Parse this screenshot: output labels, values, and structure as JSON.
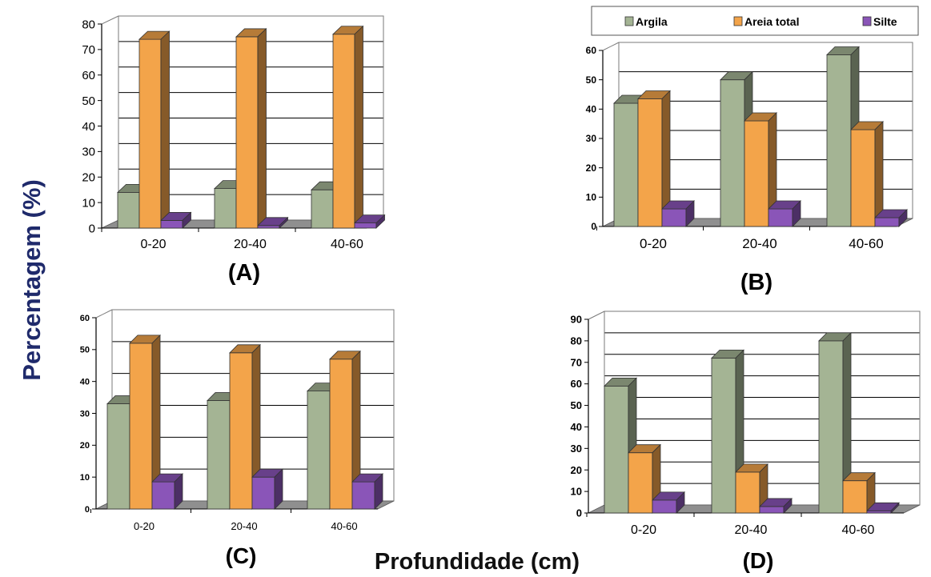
{
  "figure": {
    "ylabel": "Percentagem (%)",
    "xlabel": "Profundidade (cm)",
    "ylabel_color": "#1f2a6b",
    "xlabel_color": "#111111"
  },
  "legend": {
    "placement": "top-right",
    "items": [
      {
        "label": "Argila",
        "color": "#a4b494"
      },
      {
        "label": "Areia total",
        "color": "#f3a44a"
      },
      {
        "label": "Silte",
        "color": "#8a55b8"
      }
    ]
  },
  "chart_data": [
    {
      "type": "bar",
      "panel": "(A)",
      "categories": [
        "0-20",
        "20-40",
        "40-60"
      ],
      "ylim": [
        0,
        80
      ],
      "yticks": [
        0,
        10,
        20,
        30,
        40,
        50,
        60,
        70,
        80
      ],
      "grid": true,
      "series": [
        {
          "name": "Argila",
          "values": [
            14,
            15.5,
            15
          ]
        },
        {
          "name": "Areia total",
          "values": [
            74,
            75,
            76
          ]
        },
        {
          "name": "Silte",
          "values": [
            3,
            1,
            2
          ]
        }
      ]
    },
    {
      "type": "bar",
      "panel": "(B)",
      "categories": [
        "0-20",
        "20-40",
        "40-60"
      ],
      "ylim": [
        0,
        60
      ],
      "yticks": [
        0,
        10,
        20,
        30,
        40,
        50,
        60
      ],
      "grid": true,
      "series": [
        {
          "name": "Argila",
          "values": [
            42,
            50,
            58.5
          ]
        },
        {
          "name": "Areia total",
          "values": [
            43.5,
            36,
            33
          ]
        },
        {
          "name": "Silte",
          "values": [
            6,
            6,
            3
          ]
        }
      ]
    },
    {
      "type": "bar",
      "panel": "(C)",
      "categories": [
        "0-20",
        "20-40",
        "40-60"
      ],
      "ylim": [
        0,
        60
      ],
      "yticks": [
        0,
        10,
        20,
        30,
        40,
        50,
        60
      ],
      "grid": true,
      "series": [
        {
          "name": "Argila",
          "values": [
            33,
            34,
            37
          ]
        },
        {
          "name": "Areia total",
          "values": [
            52,
            49,
            47
          ]
        },
        {
          "name": "Silte",
          "values": [
            8.5,
            10,
            8.5
          ]
        }
      ]
    },
    {
      "type": "bar",
      "panel": "(D)",
      "categories": [
        "0-20",
        "20-40",
        "40-60"
      ],
      "ylim": [
        0,
        90
      ],
      "yticks": [
        0,
        10,
        20,
        30,
        40,
        50,
        60,
        70,
        80,
        90
      ],
      "grid": true,
      "series": [
        {
          "name": "Argila",
          "values": [
            59,
            72,
            80
          ]
        },
        {
          "name": "Areia total",
          "values": [
            28,
            19,
            15
          ]
        },
        {
          "name": "Silte",
          "values": [
            6,
            3,
            1
          ]
        }
      ]
    }
  ]
}
